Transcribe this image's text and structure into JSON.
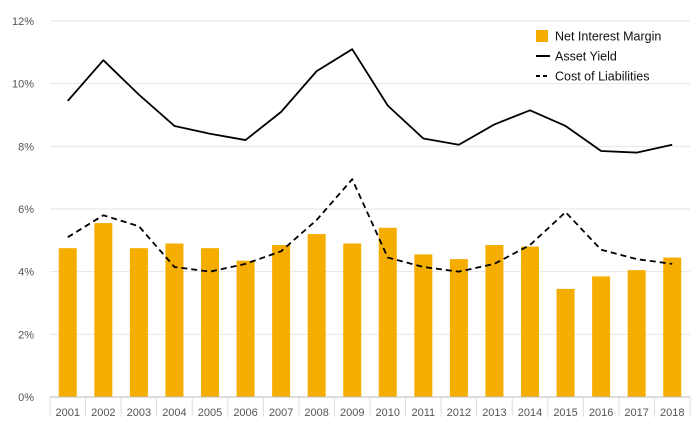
{
  "chart_data": {
    "type": "bar",
    "categories": [
      "2001",
      "2002",
      "2003",
      "2004",
      "2005",
      "2006",
      "2007",
      "2008",
      "2009",
      "2010",
      "2011",
      "2012",
      "2013",
      "2014",
      "2015",
      "2016",
      "2017",
      "2018"
    ],
    "series": [
      {
        "name": "Net Interest Margin",
        "type": "bar",
        "color": "#F5AE00",
        "values": [
          4.75,
          5.55,
          4.75,
          4.9,
          4.75,
          4.35,
          4.85,
          5.2,
          4.9,
          5.4,
          4.55,
          4.4,
          4.85,
          4.8,
          3.45,
          3.85,
          4.05,
          4.45
        ]
      },
      {
        "name": "Asset Yield",
        "type": "line",
        "color": "#000000",
        "dash": "solid",
        "values": [
          9.45,
          10.75,
          9.65,
          8.65,
          8.4,
          8.2,
          9.1,
          10.4,
          11.1,
          9.3,
          8.25,
          8.05,
          8.7,
          9.15,
          8.65,
          7.85,
          7.8,
          8.05
        ]
      },
      {
        "name": "Cost of Liabilities",
        "type": "line",
        "color": "#000000",
        "dash": "dashed",
        "values": [
          5.1,
          5.8,
          5.45,
          4.15,
          4.0,
          4.25,
          4.65,
          5.65,
          6.95,
          4.45,
          4.15,
          4.0,
          4.25,
          4.85,
          5.9,
          4.7,
          4.4,
          4.25
        ]
      }
    ],
    "yticks": [
      "0%",
      "2%",
      "4%",
      "6%",
      "8%",
      "10%",
      "12%"
    ],
    "ylim": [
      0,
      12
    ],
    "grid": true,
    "legend_position": "top-right"
  }
}
